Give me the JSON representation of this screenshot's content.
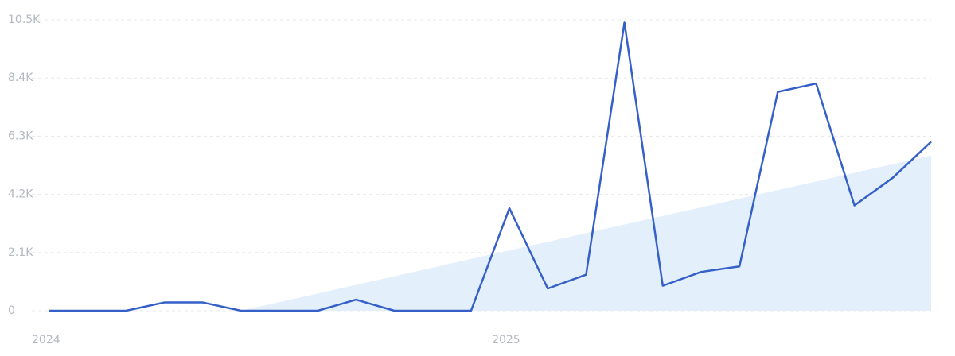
{
  "chart_data": {
    "type": "line",
    "categories": [
      "2024",
      null,
      null,
      null,
      null,
      null,
      null,
      null,
      null,
      null,
      null,
      null,
      "2025",
      null,
      null,
      null,
      null,
      null,
      null,
      null,
      null,
      null,
      null,
      null
    ],
    "series": [
      {
        "color": "#3560c8",
        "values": [
          0,
          0,
          0,
          300,
          300,
          0,
          0,
          0,
          400,
          0,
          0,
          0,
          3700,
          800,
          1300,
          10400,
          900,
          1400,
          1600,
          7900,
          8200,
          3800,
          4800,
          6100
        ]
      }
    ],
    "trend": {
      "color": "#e4effc",
      "values": [
        null,
        null,
        null,
        null,
        null,
        0,
        311,
        622,
        933,
        1244,
        1556,
        1867,
        2178,
        2489,
        2800,
        3111,
        3422,
        3733,
        4044,
        4356,
        4667,
        4978,
        5289,
        5600
      ]
    },
    "ylim": [
      0,
      10500
    ],
    "yticks": [
      0,
      {
        "value": 2100,
        "label": "2.1K"
      },
      {
        "value": 4200,
        "label": "4.2K"
      },
      {
        "value": 6300,
        "label": "6.3K"
      },
      {
        "value": 8400,
        "label": "8.4K"
      },
      {
        "value": 10500,
        "label": "10.5K"
      }
    ],
    "grid": true
  }
}
